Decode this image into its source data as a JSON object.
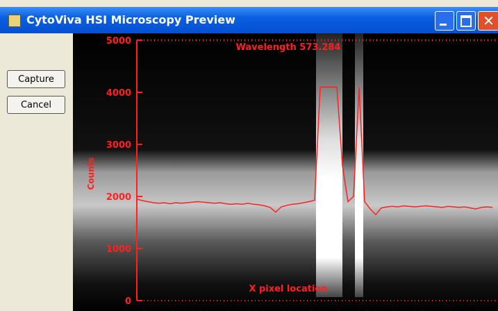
{
  "window": {
    "title": "CytoViva HSI Microscopy Preview",
    "buttons": [
      "Capture",
      "Cancel"
    ]
  },
  "chart_data": {
    "type": "line",
    "title": "Wavelength 573.284",
    "x_label": "X pixel location",
    "y_label": "Counts",
    "color": "#ff2020",
    "values": [
      1950,
      1920,
      1900,
      1880,
      1870,
      1880,
      1860,
      1880,
      1870,
      1880,
      1890,
      1900,
      1890,
      1880,
      1870,
      1880,
      1860,
      1850,
      1860,
      1850,
      1870,
      1850,
      1840,
      1820,
      1790,
      1700,
      1800,
      1830,
      1850,
      1860,
      1880,
      1900,
      1930,
      4100,
      4100,
      4100,
      4100,
      2600,
      1900,
      2000,
      4100,
      1900,
      1760,
      1650,
      1780,
      1800,
      1810,
      1800,
      1820,
      1810,
      1800,
      1810,
      1820,
      1810,
      1800,
      1790,
      1810,
      1800,
      1790,
      1800,
      1780,
      1760,
      1790,
      1800,
      1790
    ],
    "ylim": [
      0,
      5000
    ],
    "yticks": [
      0,
      1000,
      2000,
      3000,
      4000,
      5000
    ]
  }
}
